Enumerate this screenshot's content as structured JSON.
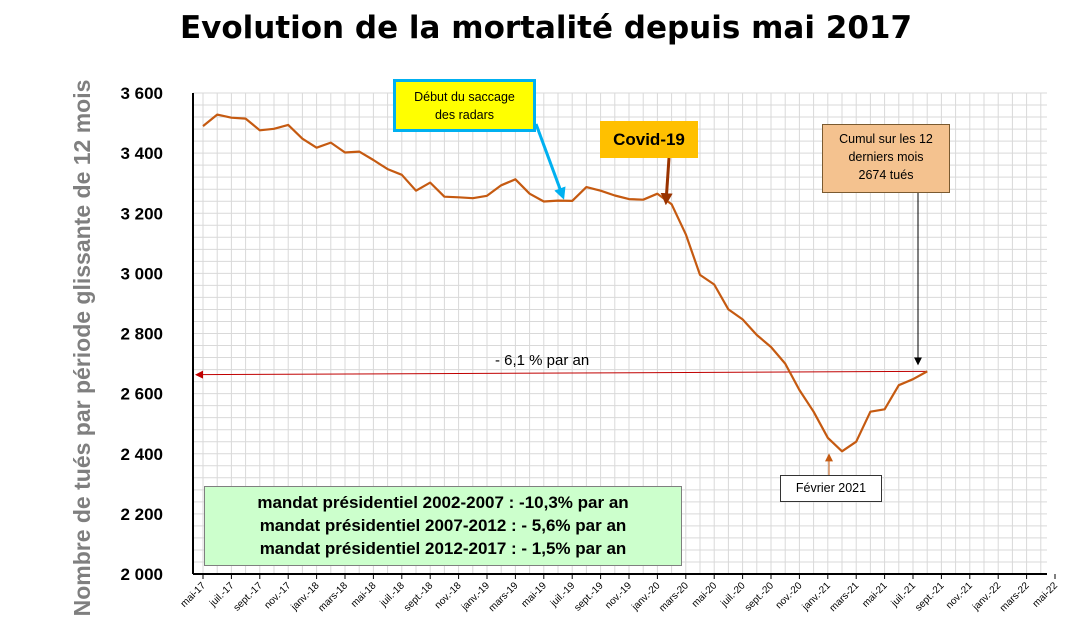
{
  "chart_data": {
    "type": "line",
    "title": "Evolution de la mortalité depuis mai 2017",
    "xlabel": "",
    "ylabel": "Nombre de tués par période  glissante de 12 mois",
    "ylim": [
      2000,
      3600
    ],
    "yticks": [
      2000,
      2200,
      2400,
      2600,
      2800,
      3000,
      3200,
      3400,
      3600
    ],
    "ytick_labels": [
      "2 000",
      "2 200",
      "2 400",
      "2 600",
      "2 800",
      "3 000",
      "3 200",
      "3 400",
      "3 600"
    ],
    "grid": true,
    "x_labels": [
      "mai-17",
      "juil.-17",
      "sept.-17",
      "nov.-17",
      "janv.-18",
      "mars-18",
      "mai-18",
      "juil.-18",
      "sept.-18",
      "nov.-18",
      "janv.-19",
      "mars-19",
      "mai-19",
      "juil.-19",
      "sept.-19",
      "nov.-19",
      "janv.-20",
      "mars-20",
      "mai-20",
      "juil.-20",
      "sept.-20",
      "nov.-20",
      "janv.-21",
      "mars-21",
      "mai-21",
      "juil.-21",
      "sept.-21",
      "nov.-21",
      "janv.-22",
      "mars-22",
      "mai-22"
    ],
    "series": [
      {
        "color": "#c55a11",
        "values": [
          3490,
          3528,
          3518,
          3515,
          3476,
          3481,
          3494,
          3448,
          3418,
          3435,
          3402,
          3405,
          3377,
          3347,
          3328,
          3275,
          3302,
          3255,
          3253,
          3250,
          3258,
          3293,
          3313,
          3265,
          3239,
          3242,
          3241,
          3287,
          3275,
          3259,
          3247,
          3245,
          3265,
          3230,
          3130,
          2995,
          2963,
          2880,
          2847,
          2795,
          2755,
          2700,
          2612,
          2540,
          2453,
          2408,
          2440,
          2540,
          2548,
          2628,
          2648,
          2674
        ]
      }
    ],
    "reference_line": {
      "from_value": 2663,
      "to_value": 2674,
      "color": "#c00000",
      "label": "- 6,1 % par an"
    },
    "annotations": {
      "radar": {
        "lines": [
          "Début du saccage",
          "des radars"
        ],
        "color": "#00b0f0"
      },
      "covid": {
        "text": "Covid-19",
        "color": "#c00000"
      },
      "cumul": {
        "lines": [
          "Cumul sur les 12",
          "derniers mois",
          "2674 tués"
        ]
      },
      "fevrier": {
        "text": "Février 2021"
      }
    },
    "mandats": [
      "mandat présidentiel 2002-2007 : -10,3% par an",
      "mandat présidentiel 2007-2012 : - 5,6% par an",
      "mandat présidentiel 2012-2017 : - 1,5% par an"
    ]
  }
}
